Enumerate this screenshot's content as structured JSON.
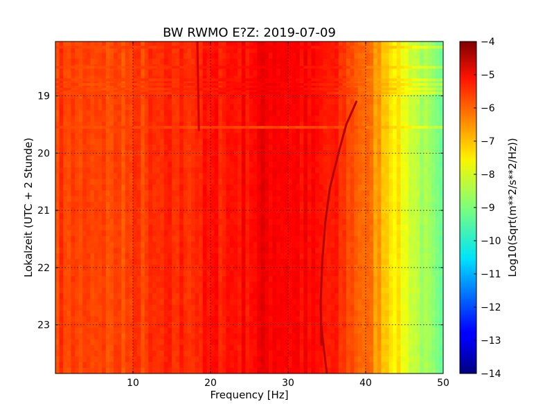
{
  "chart_data": {
    "type": "heatmap",
    "title": "BW RWMO E?Z: 2019-07-09",
    "xlabel": "Frequency [Hz]",
    "ylabel": "Lokalzeit (UTC + 2 Stunde)",
    "xlim": [
      0,
      50
    ],
    "ylim": [
      18.05,
      23.85
    ],
    "y_inverted": true,
    "x_ticks": [
      10,
      20,
      30,
      40,
      50
    ],
    "x_tick_labels": [
      "10",
      "20",
      "30",
      "40",
      "50"
    ],
    "y_ticks": [
      19,
      20,
      21,
      22,
      23
    ],
    "y_tick_labels": [
      "19",
      "20",
      "21",
      "22",
      "23"
    ],
    "grid": true,
    "colormap": "jet",
    "colorbar": {
      "label": "Log10(Sqrt(m**2/s**2/Hz))",
      "range": [
        -14,
        -4
      ],
      "ticks": [
        -4,
        -5,
        -6,
        -7,
        -8,
        -9,
        -10,
        -11,
        -12,
        -13,
        -14
      ],
      "tick_labels": [
        "−4",
        "−5",
        "−6",
        "−7",
        "−8",
        "−9",
        "−10",
        "−11",
        "−12",
        "−13",
        "−14"
      ]
    },
    "frequency_profile": {
      "x": [
        0,
        5,
        10,
        15,
        20,
        25,
        28,
        32,
        36,
        40,
        42,
        44,
        46,
        48,
        50
      ],
      "values": [
        -5.8,
        -6.0,
        -5.9,
        -5.7,
        -5.5,
        -5.3,
        -5.1,
        -5.3,
        -5.6,
        -6.3,
        -6.9,
        -7.6,
        -8.2,
        -8.8,
        -9.5
      ]
    },
    "horizontal_bands": {
      "time": [
        18.15,
        18.5,
        18.72,
        18.8,
        18.88,
        18.95,
        19.55
      ],
      "level": [
        -5.0,
        -4.6,
        -4.9,
        -5.1,
        -5.0,
        -5.2,
        -5.9
      ]
    },
    "traces": [
      {
        "x": [
          18.3,
          18.4,
          18.5
        ],
        "y": [
          18.05,
          18.8,
          19.6
        ],
        "level": -4.8
      },
      {
        "x": [
          38.8,
          37.5,
          36.5,
          35.4,
          34.8,
          34.4,
          34.2,
          34.3
        ],
        "y": [
          19.1,
          19.5,
          20.0,
          20.6,
          21.2,
          21.9,
          22.6,
          23.35
        ],
        "level": -4.5
      },
      {
        "x": [
          34.2,
          34.6,
          35.0
        ],
        "y": [
          22.9,
          23.4,
          23.85
        ],
        "level": -4.6
      }
    ]
  }
}
